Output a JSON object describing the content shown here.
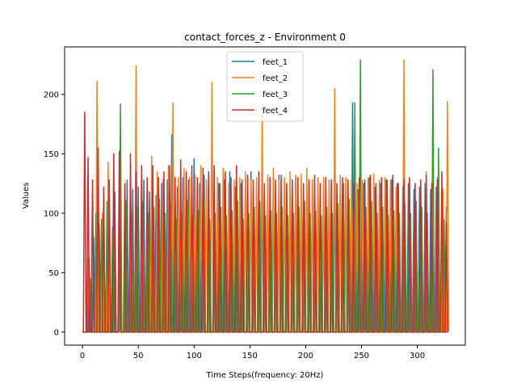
{
  "chart_data": {
    "type": "line",
    "title": "contact_forces_z - Environment 0",
    "xlabel": "Time Steps(frequency: 20Hz)",
    "ylabel": "Values",
    "xlim": [
      -16,
      343
    ],
    "ylim": [
      -11,
      240
    ],
    "xticks": [
      0,
      50,
      100,
      150,
      200,
      250,
      300
    ],
    "yticks": [
      0,
      50,
      100,
      150,
      200
    ],
    "x_end": 327,
    "legend_position": "top-center",
    "grid": false,
    "series": [
      {
        "name": "feet_1",
        "color": "#1f77b4",
        "peaks": [
          [
            6,
            62
          ],
          [
            10,
            80
          ],
          [
            15,
            90
          ],
          [
            19,
            115
          ],
          [
            24,
            100
          ],
          [
            29,
            118
          ],
          [
            34,
            138
          ],
          [
            40,
            128
          ],
          [
            45,
            120
          ],
          [
            50,
            122
          ],
          [
            55,
            128
          ],
          [
            60,
            118
          ],
          [
            66,
            115
          ],
          [
            71,
            125
          ],
          [
            76,
            128
          ],
          [
            80,
            166
          ],
          [
            85,
            122
          ],
          [
            90,
            130
          ],
          [
            95,
            128
          ],
          [
            100,
            146
          ],
          [
            105,
            125
          ],
          [
            109,
            132
          ],
          [
            113,
            135
          ],
          [
            118,
            118
          ],
          [
            122,
            125
          ],
          [
            127,
            128
          ],
          [
            132,
            135
          ],
          [
            137,
            122
          ],
          [
            142,
            125
          ],
          [
            146,
            132
          ],
          [
            151,
            135
          ],
          [
            156,
            122
          ],
          [
            161,
            128
          ],
          [
            166,
            130
          ],
          [
            171,
            125
          ],
          [
            176,
            132
          ],
          [
            181,
            128
          ],
          [
            186,
            125
          ],
          [
            191,
            130
          ],
          [
            196,
            122
          ],
          [
            201,
            125
          ],
          [
            206,
            128
          ],
          [
            211,
            130
          ],
          [
            216,
            120
          ],
          [
            221,
            125
          ],
          [
            226,
            128
          ],
          [
            231,
            122
          ],
          [
            236,
            125
          ],
          [
            242,
            193
          ],
          [
            247,
            120
          ],
          [
            252,
            125
          ],
          [
            257,
            130
          ],
          [
            262,
            122
          ],
          [
            267,
            125
          ],
          [
            272,
            128
          ],
          [
            277,
            128
          ],
          [
            282,
            125
          ],
          [
            287,
            122
          ],
          [
            292,
            125
          ],
          [
            297,
            120
          ],
          [
            302,
            122
          ],
          [
            307,
            125
          ],
          [
            312,
            120
          ],
          [
            317,
            122
          ],
          [
            322,
            118
          ],
          [
            326,
            105
          ]
        ]
      },
      {
        "name": "feet_2",
        "color": "#ff7f0e",
        "peaks": [
          [
            5,
            62
          ],
          [
            13,
            211
          ],
          [
            18,
            100
          ],
          [
            23,
            143
          ],
          [
            28,
            128
          ],
          [
            33,
            135
          ],
          [
            38,
            125
          ],
          [
            43,
            130
          ],
          [
            48,
            224
          ],
          [
            53,
            140
          ],
          [
            58,
            128
          ],
          [
            62,
            148
          ],
          [
            67,
            135
          ],
          [
            72,
            128
          ],
          [
            77,
            140
          ],
          [
            81,
            193
          ],
          [
            86,
            130
          ],
          [
            91,
            138
          ],
          [
            96,
            130
          ],
          [
            101,
            132
          ],
          [
            106,
            140
          ],
          [
            111,
            128
          ],
          [
            116,
            210
          ],
          [
            121,
            130
          ],
          [
            126,
            138
          ],
          [
            131,
            125
          ],
          [
            136,
            128
          ],
          [
            141,
            130
          ],
          [
            146,
            135
          ],
          [
            151,
            128
          ],
          [
            156,
            130
          ],
          [
            161,
            192
          ],
          [
            166,
            132
          ],
          [
            171,
            138
          ],
          [
            176,
            128
          ],
          [
            181,
            130
          ],
          [
            186,
            135
          ],
          [
            191,
            132
          ],
          [
            196,
            133
          ],
          [
            201,
            138
          ],
          [
            206,
            128
          ],
          [
            211,
            130
          ],
          [
            216,
            130
          ],
          [
            221,
            128
          ],
          [
            226,
            205
          ],
          [
            231,
            132
          ],
          [
            236,
            130
          ],
          [
            241,
            128
          ],
          [
            246,
            125
          ],
          [
            251,
            128
          ],
          [
            256,
            130
          ],
          [
            261,
            133
          ],
          [
            266,
            128
          ],
          [
            271,
            130
          ],
          [
            276,
            128
          ],
          [
            281,
            122
          ],
          [
            288,
            229
          ],
          [
            293,
            128
          ],
          [
            298,
            125
          ],
          [
            303,
            128
          ],
          [
            308,
            135
          ],
          [
            313,
            125
          ],
          [
            318,
            130
          ],
          [
            323,
            120
          ],
          [
            327,
            194
          ]
        ]
      },
      {
        "name": "feet_3",
        "color": "#2ca02c",
        "peaks": [
          [
            7,
            45
          ],
          [
            12,
            100
          ],
          [
            17,
            95
          ],
          [
            22,
            110
          ],
          [
            27,
            88
          ],
          [
            34,
            192
          ],
          [
            39,
            110
          ],
          [
            44,
            100
          ],
          [
            49,
            105
          ],
          [
            54,
            110
          ],
          [
            59,
            100
          ],
          [
            64,
            105
          ],
          [
            69,
            112
          ],
          [
            74,
            100
          ],
          [
            79,
            108
          ],
          [
            84,
            95
          ],
          [
            89,
            100
          ],
          [
            94,
            110
          ],
          [
            99,
            98
          ],
          [
            104,
            102
          ],
          [
            109,
            110
          ],
          [
            114,
            95
          ],
          [
            119,
            100
          ],
          [
            124,
            105
          ],
          [
            129,
            98
          ],
          [
            134,
            102
          ],
          [
            139,
            110
          ],
          [
            144,
            95
          ],
          [
            149,
            100
          ],
          [
            154,
            105
          ],
          [
            159,
            110
          ],
          [
            164,
            98
          ],
          [
            169,
            102
          ],
          [
            174,
            100
          ],
          [
            179,
            105
          ],
          [
            184,
            98
          ],
          [
            189,
            100
          ],
          [
            194,
            105
          ],
          [
            199,
            110
          ],
          [
            204,
            100
          ],
          [
            209,
            102
          ],
          [
            214,
            98
          ],
          [
            219,
            105
          ],
          [
            224,
            100
          ],
          [
            229,
            108
          ],
          [
            234,
            125
          ],
          [
            239,
            112
          ],
          [
            244,
            193
          ],
          [
            249,
            229
          ],
          [
            254,
            105
          ],
          [
            259,
            110
          ],
          [
            264,
            100
          ],
          [
            269,
            105
          ],
          [
            274,
            98
          ],
          [
            279,
            102
          ],
          [
            284,
            100
          ],
          [
            289,
            108
          ],
          [
            294,
            100
          ],
          [
            299,
            110
          ],
          [
            304,
            105
          ],
          [
            309,
            100
          ],
          [
            314,
            221
          ],
          [
            319,
            155
          ],
          [
            324,
            95
          ]
        ]
      },
      {
        "name": "feet_4",
        "color": "#d62728",
        "peaks": [
          [
            2,
            185
          ],
          [
            5,
            147
          ],
          [
            9,
            128
          ],
          [
            14,
            155
          ],
          [
            19,
            122
          ],
          [
            24,
            128
          ],
          [
            28,
            150
          ],
          [
            33,
            152
          ],
          [
            38,
            125
          ],
          [
            43,
            150
          ],
          [
            48,
            135
          ],
          [
            53,
            140
          ],
          [
            58,
            130
          ],
          [
            63,
            140
          ],
          [
            68,
            130
          ],
          [
            73,
            135
          ],
          [
            78,
            140
          ],
          [
            83,
            130
          ],
          [
            88,
            145
          ],
          [
            93,
            135
          ],
          [
            98,
            140
          ],
          [
            103,
            130
          ],
          [
            108,
            138
          ],
          [
            113,
            132
          ],
          [
            118,
            140
          ],
          [
            123,
            125
          ],
          [
            128,
            135
          ],
          [
            133,
            130
          ],
          [
            138,
            140
          ],
          [
            143,
            128
          ],
          [
            148,
            132
          ],
          [
            153,
            128
          ],
          [
            158,
            135
          ],
          [
            163,
            125
          ],
          [
            168,
            130
          ],
          [
            173,
            128
          ],
          [
            178,
            132
          ],
          [
            183,
            125
          ],
          [
            188,
            128
          ],
          [
            193,
            130
          ],
          [
            198,
            125
          ],
          [
            203,
            128
          ],
          [
            208,
            132
          ],
          [
            213,
            125
          ],
          [
            218,
            130
          ],
          [
            223,
            128
          ],
          [
            228,
            125
          ],
          [
            233,
            130
          ],
          [
            238,
            128
          ],
          [
            243,
            125
          ],
          [
            248,
            130
          ],
          [
            253,
            128
          ],
          [
            258,
            132
          ],
          [
            263,
            125
          ],
          [
            268,
            130
          ],
          [
            273,
            128
          ],
          [
            278,
            132
          ],
          [
            283,
            125
          ],
          [
            288,
            128
          ],
          [
            293,
            130
          ],
          [
            298,
            125
          ],
          [
            303,
            128
          ],
          [
            308,
            132
          ],
          [
            313,
            125
          ],
          [
            318,
            128
          ],
          [
            322,
            135
          ],
          [
            326,
            92
          ]
        ]
      }
    ]
  }
}
